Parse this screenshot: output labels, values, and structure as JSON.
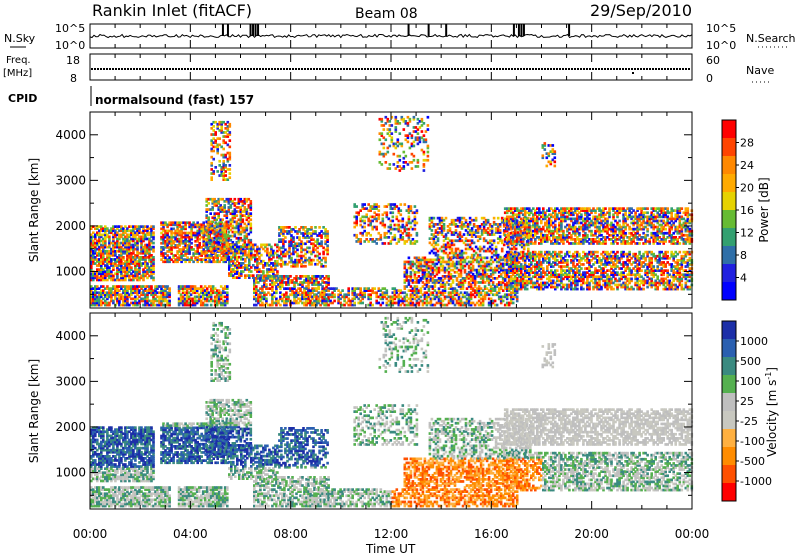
{
  "header": {
    "station": "Rankin Inlet (fitACF)",
    "beam": "Beam 08",
    "date": "29/Sep/2010"
  },
  "status_panels": {
    "nsky_label": "N.Sky",
    "nsearch_label": "N.Search",
    "nsky_ticks": [
      "10^5",
      "10^0"
    ],
    "nsearch_ticks": [
      "10^5",
      "10^0"
    ],
    "freq_label_1": "Freq.",
    "freq_label_2": "[MHz]",
    "freq_ticks": [
      "18",
      "8"
    ],
    "nave_label": "Nave",
    "nave_ticks": [
      "60",
      "0"
    ],
    "cpid_label": "CPID",
    "cpid_text": "normalsound (fast) 157"
  },
  "chart_data": [
    {
      "type": "heatmap",
      "name": "power-panel",
      "ylabel": "Slant Range [km]",
      "ylim": [
        200,
        4500
      ],
      "yticks": [
        1000,
        2000,
        3000,
        4000
      ],
      "xlim": [
        0,
        24
      ],
      "colorbar_label": "Power [dB]",
      "colorbar_ticks": [
        "28",
        "24",
        "20",
        "16",
        "12",
        "8",
        "4"
      ],
      "colorbar_colors": [
        "#ff0000",
        "#ff4400",
        "#ff8800",
        "#ffaa00",
        "#e6d200",
        "#66bb33",
        "#33a070",
        "#2f6fa8",
        "#2020e0",
        "#0000ff"
      ]
    },
    {
      "type": "heatmap",
      "name": "velocity-panel",
      "ylabel": "Slant Range [km]",
      "ylim": [
        200,
        4500
      ],
      "yticks": [
        1000,
        2000,
        3000,
        4000
      ],
      "xlim": [
        0,
        24
      ],
      "xlabel": "Time UT",
      "xticks": [
        "00:00",
        "04:00",
        "08:00",
        "12:00",
        "16:00",
        "20:00",
        "00:00"
      ],
      "colorbar_label": "Velocity [m s",
      "colorbar_label_sup": "-1",
      "colorbar_ticks": [
        "1000",
        "500",
        "100",
        "25",
        "-25",
        "-100",
        "-500",
        "-1000"
      ],
      "colorbar_colors": [
        "#1c2fa8",
        "#2a5fb0",
        "#3a8a80",
        "#55b050",
        "#bfbfbf",
        "#c8c8c0",
        "#ffb040",
        "#ff8c00",
        "#ff5000",
        "#ff0000"
      ]
    }
  ]
}
